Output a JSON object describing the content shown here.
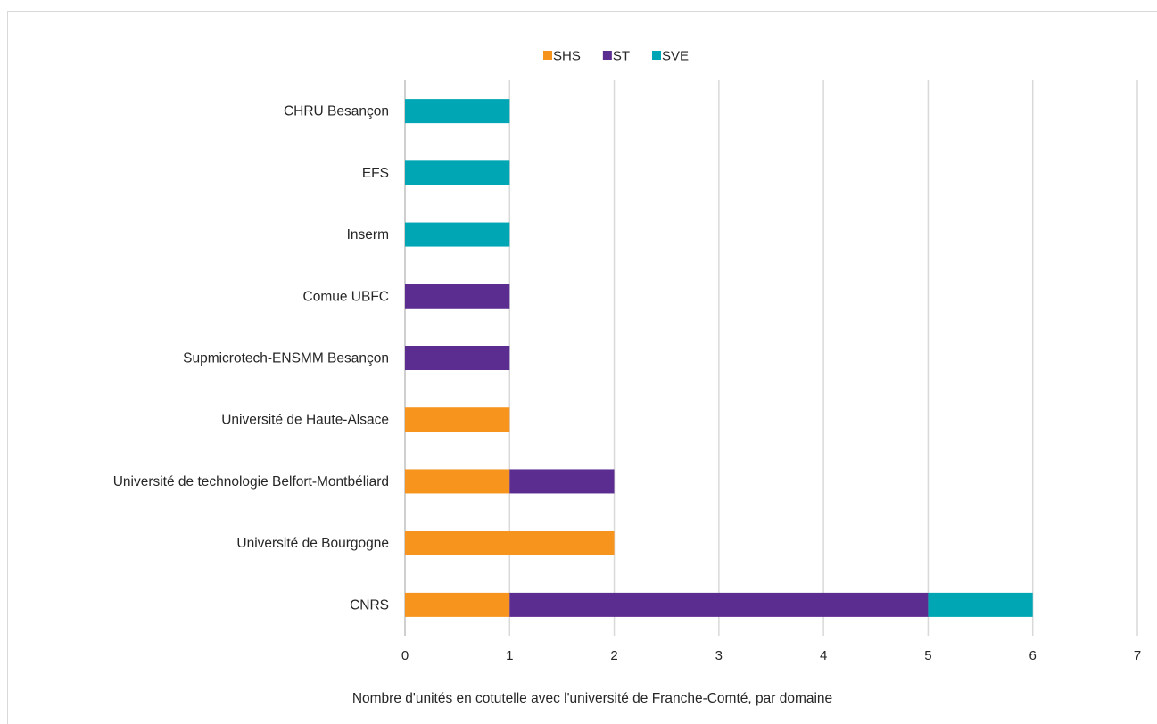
{
  "chart_data": {
    "type": "bar",
    "orientation": "horizontal",
    "stacked": true,
    "title": "",
    "xlabel": "Nombre d'unités en cotutelle avec l'université de Franche-Comté, par domaine",
    "ylabel": "",
    "xlim": [
      0,
      7
    ],
    "xticks": [
      "0",
      "1",
      "2",
      "3",
      "4",
      "5",
      "6",
      "7"
    ],
    "grid": "vertical",
    "legend_position": "top",
    "categories": [
      "CHRU Besançon",
      "EFS",
      "Inserm",
      "Comue UBFC",
      "Supmicrotech-ENSMM Besançon",
      "Université de Haute-Alsace",
      "Université de technologie Belfort-Montbéliard",
      "Université de Bourgogne",
      "CNRS"
    ],
    "series": [
      {
        "name": "SHS",
        "color": "#f7941d",
        "values": [
          0,
          0,
          0,
          0,
          0,
          1,
          1,
          2,
          1
        ]
      },
      {
        "name": "ST",
        "color": "#5c2d91",
        "values": [
          0,
          0,
          0,
          1,
          1,
          0,
          1,
          0,
          4
        ]
      },
      {
        "name": "SVE",
        "color": "#00a6b4",
        "values": [
          1,
          1,
          1,
          0,
          0,
          0,
          0,
          0,
          1
        ]
      }
    ]
  }
}
